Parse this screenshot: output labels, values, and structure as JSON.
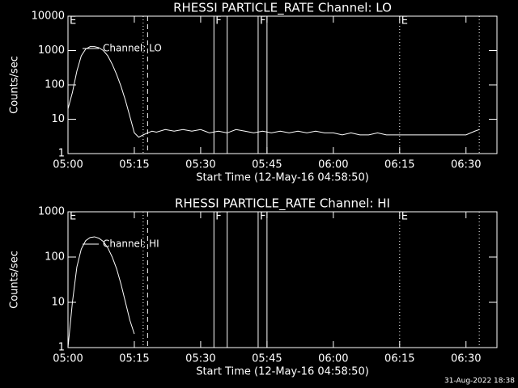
{
  "chart_data": [
    {
      "type": "line",
      "title": "RHESSI PARTICLE_RATE Channel: LO",
      "xlabel": "Start Time (12-May-16 04:58:50)",
      "ylabel": "Counts/sec",
      "log_y": true,
      "color": "#ffffff",
      "xlim": [
        "05:00",
        "06:37"
      ],
      "xticks": [
        "05:00",
        "05:15",
        "05:30",
        "05:45",
        "06:00",
        "06:15",
        "06:30"
      ],
      "ylim": [
        1,
        10000
      ],
      "yticks": [
        1,
        10,
        100,
        1000,
        10000
      ],
      "series": [
        {
          "name": "Channel: LO",
          "color": "#ffffff",
          "x": [
            "05:00",
            "05:01",
            "05:02",
            "05:03",
            "05:04",
            "05:05",
            "05:06",
            "05:07",
            "05:08",
            "05:09",
            "05:10",
            "05:11",
            "05:12",
            "05:13",
            "05:14",
            "05:15",
            "05:16",
            "05:17",
            "05:18",
            "05:19",
            "05:20",
            "05:22",
            "05:24",
            "05:26",
            "05:28",
            "05:30",
            "05:32",
            "05:34",
            "05:36",
            "05:38",
            "05:40",
            "05:42",
            "05:44",
            "05:46",
            "05:48",
            "05:50",
            "05:52",
            "05:54",
            "05:56",
            "05:58",
            "06:00",
            "06:02",
            "06:04",
            "06:06",
            "06:08",
            "06:10",
            "06:12",
            "06:14",
            "06:16",
            "06:18",
            "06:20",
            "06:22",
            "06:24",
            "06:26",
            "06:28",
            "06:30",
            "06:32",
            "06:33"
          ],
          "values": [
            20,
            60,
            250,
            700,
            1100,
            1300,
            1300,
            1200,
            1000,
            700,
            400,
            200,
            90,
            35,
            12,
            4,
            3,
            3.5,
            4,
            4.5,
            4.2,
            5,
            4.5,
            5,
            4.5,
            5,
            4,
            4.5,
            4,
            5,
            4.5,
            4,
            4.5,
            4,
            4.5,
            4,
            4.5,
            4,
            4.5,
            4,
            4,
            3.5,
            4,
            3.5,
            3.5,
            4,
            3.5,
            3.5,
            3.5,
            3.5,
            3.5,
            3.5,
            3.5,
            3.5,
            3.5,
            3.5,
            4.5,
            5
          ]
        }
      ],
      "events": [
        {
          "x": "05:00",
          "style": "none",
          "label": "E"
        },
        {
          "x": "05:17",
          "style": "dotted"
        },
        {
          "x": "05:18",
          "style": "dashed"
        },
        {
          "x": "05:33",
          "style": "solid",
          "label": "F"
        },
        {
          "x": "05:36",
          "style": "solid"
        },
        {
          "x": "05:43",
          "style": "solid",
          "label": "F"
        },
        {
          "x": "05:45",
          "style": "solid"
        },
        {
          "x": "06:15",
          "style": "dotted",
          "label": "E"
        },
        {
          "x": "06:33",
          "style": "dotted"
        }
      ]
    },
    {
      "type": "line",
      "title": "RHESSI PARTICLE_RATE Channel: HI",
      "xlabel": "Start Time (12-May-16 04:58:50)",
      "ylabel": "Counts/sec",
      "log_y": true,
      "color": "#ffffff",
      "xlim": [
        "05:00",
        "06:37"
      ],
      "xticks": [
        "05:00",
        "05:15",
        "05:30",
        "05:45",
        "06:00",
        "06:15",
        "06:30"
      ],
      "ylim": [
        1,
        1000
      ],
      "yticks": [
        1,
        10,
        100,
        1000
      ],
      "series": [
        {
          "name": "Channel: HI",
          "color": "#ffffff",
          "x": [
            "05:00",
            "05:01",
            "05:02",
            "05:03",
            "05:04",
            "05:05",
            "05:06",
            "05:07",
            "05:08",
            "05:09",
            "05:10",
            "05:11",
            "05:12",
            "05:13",
            "05:14",
            "05:15"
          ],
          "values": [
            1,
            10,
            60,
            150,
            230,
            270,
            280,
            260,
            220,
            160,
            100,
            55,
            25,
            10,
            4,
            2
          ]
        }
      ],
      "events": [
        {
          "x": "05:00",
          "style": "none",
          "label": "E"
        },
        {
          "x": "05:17",
          "style": "dotted"
        },
        {
          "x": "05:18",
          "style": "dashed"
        },
        {
          "x": "05:33",
          "style": "solid",
          "label": "F"
        },
        {
          "x": "05:36",
          "style": "solid"
        },
        {
          "x": "05:43",
          "style": "solid",
          "label": "F"
        },
        {
          "x": "05:45",
          "style": "solid"
        },
        {
          "x": "06:15",
          "style": "dotted",
          "label": "E"
        },
        {
          "x": "06:33",
          "style": "dotted"
        }
      ]
    }
  ],
  "footer": "31-Aug-2022 18:38"
}
